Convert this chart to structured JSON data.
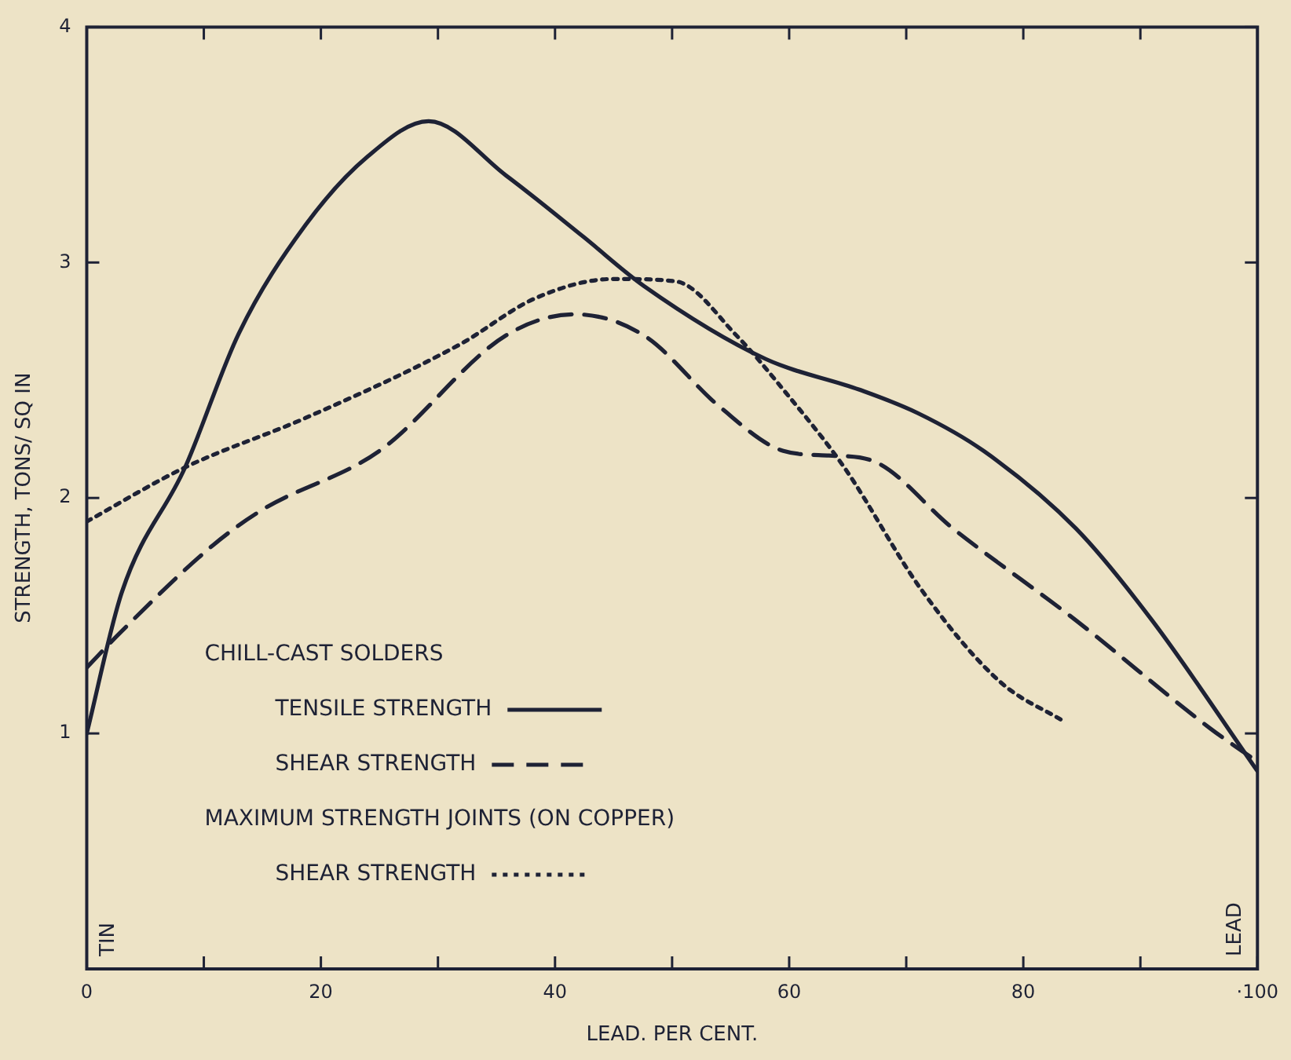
{
  "chart_data": {
    "type": "line",
    "xlabel": "LEAD. PER CENT.",
    "ylabel": "STRENGTH, TONS/ SQ IN",
    "xlim": [
      0,
      100
    ],
    "ylim": [
      0,
      4
    ],
    "xticks": [
      0,
      {
        "value": 10,
        "label": null
      },
      20,
      {
        "value": 30,
        "label": null
      },
      40,
      {
        "value": 50,
        "label": null
      },
      60,
      {
        "value": 70,
        "label": null
      },
      80,
      {
        "value": 90,
        "label": null
      },
      {
        "value": 100,
        "label": "·100"
      }
    ],
    "yticks": [
      1,
      2,
      3,
      4
    ],
    "grid": false,
    "legend": "bottom left",
    "marker": "none",
    "annotations": [
      "CHILL-CAST SOLDERS",
      "MAXIMUM STRENGTH JOINTS (ON COPPER)",
      "TIN",
      "LEAD"
    ],
    "series": [
      {
        "name": "TENSILE STRENGTH",
        "color": "#1e2235",
        "line_style": "solid",
        "x": [
          0,
          3,
          8.4,
          13,
          18.7,
          24,
          29.2,
          35.8,
          42.4,
          47.6,
          58,
          66,
          71,
          76.6,
          84.5,
          91,
          100
        ],
        "values": [
          1.0,
          1.6,
          2.13,
          2.7,
          3.16,
          3.45,
          3.6,
          3.37,
          3.11,
          2.9,
          2.59,
          2.46,
          2.36,
          2.2,
          1.87,
          1.48,
          0.84
        ]
      },
      {
        "name": "SHEAR STRENGTH",
        "color": "#1e2235",
        "line_style": "dashed",
        "x": [
          0,
          2.9,
          10.8,
          15,
          25,
          35.8,
          41.7,
          47.6,
          54,
          59.5,
          63.4,
          67,
          74,
          84.5,
          96,
          100
        ],
        "values": [
          1.28,
          1.43,
          1.8,
          1.95,
          2.2,
          2.69,
          2.78,
          2.69,
          2.39,
          2.2,
          2.18,
          2.16,
          1.87,
          1.48,
          1.02,
          0.88
        ]
      },
      {
        "name": "SHEAR STRENGTH",
        "color": "#1e2235",
        "line_style": "dotted",
        "x": [
          0,
          8.4,
          18.7,
          31.8,
          38.4,
          45,
          50.3,
          55.5,
          59.5,
          64.7,
          71.3,
          78,
          83.5
        ],
        "values": [
          1.9,
          2.13,
          2.34,
          2.65,
          2.85,
          2.93,
          2.92,
          2.69,
          2.46,
          2.13,
          1.61,
          1.22,
          1.05
        ]
      }
    ]
  }
}
